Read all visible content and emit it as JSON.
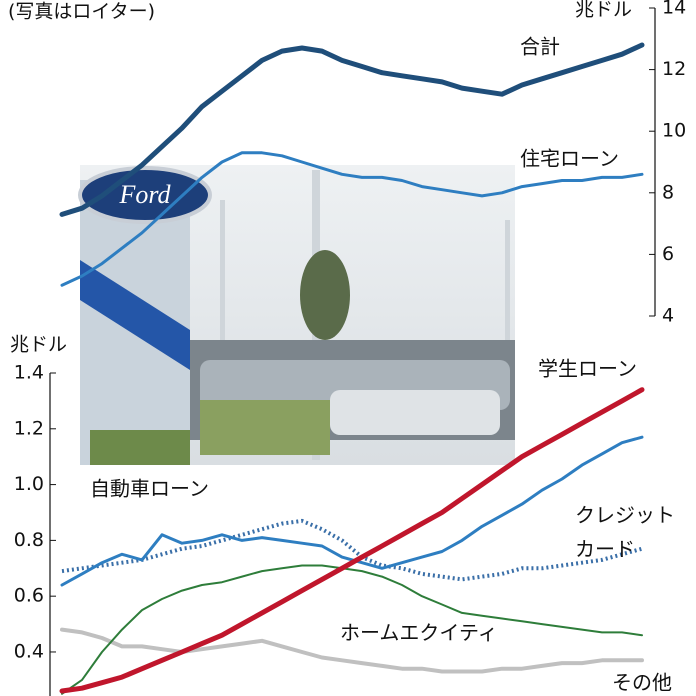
{
  "caption": "(写真はロイター)",
  "photo_logo": "Ford",
  "chart_data": [
    {
      "type": "line",
      "unit": "兆ドル",
      "categories": [
        null,
        null,
        null,
        null,
        null,
        null,
        null,
        null,
        null,
        null,
        null,
        null,
        null,
        null,
        null,
        null,
        null,
        null,
        null,
        null,
        null,
        null,
        null,
        null,
        null,
        null,
        null,
        null,
        null,
        null
      ],
      "ylim": [
        4,
        14
      ],
      "yticks": [
        4,
        6,
        8,
        10,
        12,
        14
      ],
      "axis_side": "right",
      "series": [
        {
          "name": "合計",
          "color": "#1f4e7a",
          "values": [
            7.3,
            7.5,
            7.9,
            8.4,
            8.9,
            9.5,
            10.1,
            10.8,
            11.3,
            11.8,
            12.3,
            12.6,
            12.7,
            12.6,
            12.3,
            12.1,
            11.9,
            11.8,
            11.7,
            11.6,
            11.4,
            11.3,
            11.2,
            11.5,
            11.7,
            11.9,
            12.1,
            12.3,
            12.5,
            12.8
          ]
        },
        {
          "name": "住宅ローン",
          "color": "#2e7ec1",
          "values": [
            5.0,
            5.3,
            5.7,
            6.2,
            6.7,
            7.3,
            7.9,
            8.5,
            9.0,
            9.3,
            9.3,
            9.2,
            9.0,
            8.8,
            8.6,
            8.5,
            8.5,
            8.4,
            8.2,
            8.1,
            8.0,
            7.9,
            8.0,
            8.2,
            8.3,
            8.4,
            8.4,
            8.5,
            8.5,
            8.6
          ]
        }
      ]
    },
    {
      "type": "line",
      "unit": "兆ドル",
      "categories": [
        null,
        null,
        null,
        null,
        null,
        null,
        null,
        null,
        null,
        null,
        null,
        null,
        null,
        null,
        null,
        null,
        null,
        null,
        null,
        null,
        null,
        null,
        null,
        null,
        null,
        null,
        null,
        null,
        null,
        null
      ],
      "ylim": [
        0.24,
        1.4
      ],
      "yticks": [
        0.4,
        0.6,
        0.8,
        {
          "value": 1,
          "label": "1.0"
        },
        1.2,
        1.4
      ],
      "axis_side": "left",
      "series": [
        {
          "name": "学生ローン",
          "color": "#c0162c",
          "values": [
            0.26,
            0.27,
            0.29,
            0.31,
            0.34,
            0.37,
            0.4,
            0.43,
            0.46,
            0.5,
            0.54,
            0.58,
            0.62,
            0.66,
            0.7,
            0.74,
            0.78,
            0.82,
            0.86,
            0.9,
            0.95,
            1.0,
            1.05,
            1.1,
            1.14,
            1.18,
            1.22,
            1.26,
            1.3,
            1.34
          ]
        },
        {
          "name": "自動車ローン",
          "color": "#2e7ec1",
          "values": [
            0.64,
            0.68,
            0.72,
            0.75,
            0.73,
            0.82,
            0.79,
            0.8,
            0.82,
            0.8,
            0.81,
            0.8,
            0.79,
            0.78,
            0.74,
            0.72,
            0.7,
            0.72,
            0.74,
            0.76,
            0.8,
            0.85,
            0.89,
            0.93,
            0.98,
            1.02,
            1.07,
            1.11,
            1.15,
            1.17
          ]
        },
        {
          "name": "クレジットカード",
          "color": "#3a6fa8",
          "dashed": true,
          "values": [
            0.69,
            0.7,
            0.71,
            0.72,
            0.73,
            0.75,
            0.77,
            0.78,
            0.8,
            0.82,
            0.84,
            0.86,
            0.87,
            0.84,
            0.8,
            0.74,
            0.71,
            0.7,
            0.68,
            0.67,
            0.66,
            0.67,
            0.68,
            0.7,
            0.7,
            0.71,
            0.72,
            0.73,
            0.75,
            0.77
          ]
        },
        {
          "name": "ホームエクイティ",
          "color": "#2e7d3a",
          "values": [
            0.25,
            0.3,
            0.4,
            0.48,
            0.55,
            0.59,
            0.62,
            0.64,
            0.65,
            0.67,
            0.69,
            0.7,
            0.71,
            0.71,
            0.7,
            0.69,
            0.67,
            0.64,
            0.6,
            0.57,
            0.54,
            0.53,
            0.52,
            0.51,
            0.5,
            0.49,
            0.48,
            0.47,
            0.47,
            0.46
          ]
        },
        {
          "name": "その他",
          "color": "#c0c0c0",
          "values": [
            0.48,
            0.47,
            0.45,
            0.42,
            0.42,
            0.41,
            0.4,
            0.41,
            0.42,
            0.43,
            0.44,
            0.42,
            0.4,
            0.38,
            0.37,
            0.36,
            0.35,
            0.34,
            0.34,
            0.33,
            0.33,
            0.33,
            0.34,
            0.34,
            0.35,
            0.36,
            0.36,
            0.37,
            0.37,
            0.37
          ]
        }
      ]
    }
  ]
}
